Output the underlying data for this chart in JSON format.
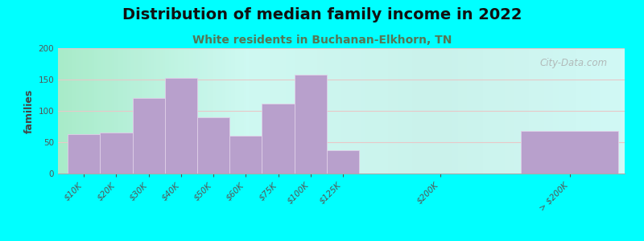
{
  "title": "Distribution of median family income in 2022",
  "subtitle": "White residents in Buchanan-Elkhorn, TN",
  "ylabel": "families",
  "background_outer": "#00FFFF",
  "bar_color": "#b8a0cc",
  "bar_edgecolor": "#e0d0e8",
  "categories": [
    "$10K",
    "$20K",
    "$30K",
    "$40K",
    "$50K",
    "$60K",
    "$75K",
    "$100K",
    "$125K",
    "$200K",
    "> $200K"
  ],
  "values": [
    63,
    65,
    120,
    153,
    90,
    60,
    112,
    158,
    37,
    0,
    68
  ],
  "ylim": [
    0,
    200
  ],
  "yticks": [
    0,
    50,
    100,
    150,
    200
  ],
  "title_fontsize": 14,
  "subtitle_fontsize": 10,
  "ylabel_fontsize": 9,
  "tick_fontsize": 7.5,
  "watermark_text": "City-Data.com",
  "watermark_color": "#aaaaaa",
  "grid_color": "#e8c8c8",
  "hgrid_values": [
    50,
    100,
    150,
    200
  ]
}
